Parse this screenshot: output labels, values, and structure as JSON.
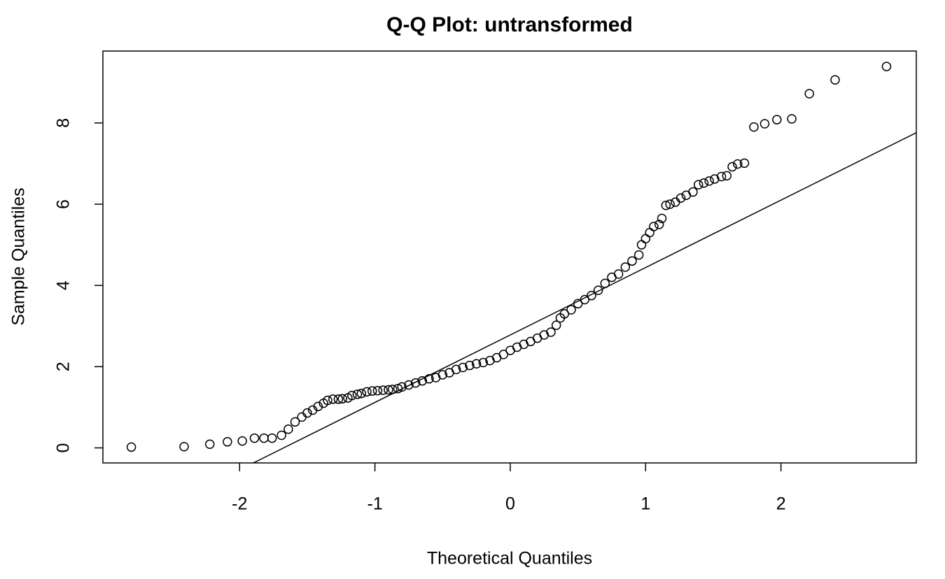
{
  "chart_data": {
    "type": "scatter",
    "title": "Q-Q Plot: untransformed",
    "x_label": "Theoretical Quantiles",
    "y_label": "Sample Quantiles",
    "x": [
      -2.8,
      -2.41,
      -2.22,
      -2.09,
      -1.98,
      -1.89,
      -1.82,
      -1.76,
      -1.69,
      -1.64,
      -1.59,
      -1.54,
      -1.5,
      -1.46,
      -1.42,
      -1.38,
      -1.35,
      -1.31,
      -1.27,
      -1.24,
      -1.2,
      -1.17,
      -1.13,
      -1.1,
      -1.06,
      -1.02,
      -0.98,
      -0.94,
      -0.9,
      -0.87,
      -0.83,
      -0.8,
      -0.75,
      -0.7,
      -0.65,
      -0.6,
      -0.55,
      -0.5,
      -0.45,
      -0.4,
      -0.35,
      -0.3,
      -0.25,
      -0.2,
      -0.15,
      -0.1,
      -0.05,
      0,
      0.05,
      0.1,
      0.15,
      0.2,
      0.25,
      0.3,
      0.34,
      0.37,
      0.4,
      0.45,
      0.5,
      0.55,
      0.6,
      0.65,
      0.7,
      0.75,
      0.8,
      0.85,
      0.9,
      0.95,
      0.97,
      1.0,
      1.03,
      1.06,
      1.1,
      1.12,
      1.15,
      1.18,
      1.22,
      1.26,
      1.3,
      1.35,
      1.39,
      1.43,
      1.47,
      1.51,
      1.56,
      1.6,
      1.64,
      1.68,
      1.73,
      1.8,
      1.88,
      1.97,
      2.08,
      2.21,
      2.4,
      2.78
    ],
    "y": [
      0.02,
      0.03,
      0.09,
      0.15,
      0.17,
      0.24,
      0.24,
      0.24,
      0.31,
      0.46,
      0.64,
      0.76,
      0.86,
      0.93,
      1.02,
      1.1,
      1.17,
      1.2,
      1.2,
      1.21,
      1.23,
      1.29,
      1.32,
      1.34,
      1.38,
      1.4,
      1.41,
      1.42,
      1.43,
      1.44,
      1.46,
      1.5,
      1.55,
      1.6,
      1.65,
      1.7,
      1.73,
      1.8,
      1.85,
      1.93,
      1.98,
      2.03,
      2.07,
      2.1,
      2.15,
      2.22,
      2.3,
      2.4,
      2.48,
      2.55,
      2.62,
      2.7,
      2.78,
      2.85,
      3.02,
      3.2,
      3.3,
      3.4,
      3.55,
      3.65,
      3.75,
      3.88,
      4.05,
      4.2,
      4.28,
      4.45,
      4.6,
      4.75,
      5.0,
      5.15,
      5.3,
      5.45,
      5.5,
      5.65,
      5.97,
      6.0,
      6.05,
      6.15,
      6.22,
      6.3,
      6.48,
      6.52,
      6.57,
      6.62,
      6.68,
      6.7,
      6.92,
      6.99,
      7.01,
      7.9,
      7.98,
      8.08,
      8.1,
      8.72,
      9.06,
      9.39
    ],
    "xlim": [
      -3.01,
      3.0
    ],
    "ylim": [
      -0.37,
      9.77
    ],
    "xticks": [
      -2,
      -1,
      0,
      1,
      2
    ],
    "yticks": [
      0,
      2,
      4,
      6,
      8
    ],
    "reference_line": {
      "intercept": 2.78,
      "slope": 1.66
    }
  }
}
